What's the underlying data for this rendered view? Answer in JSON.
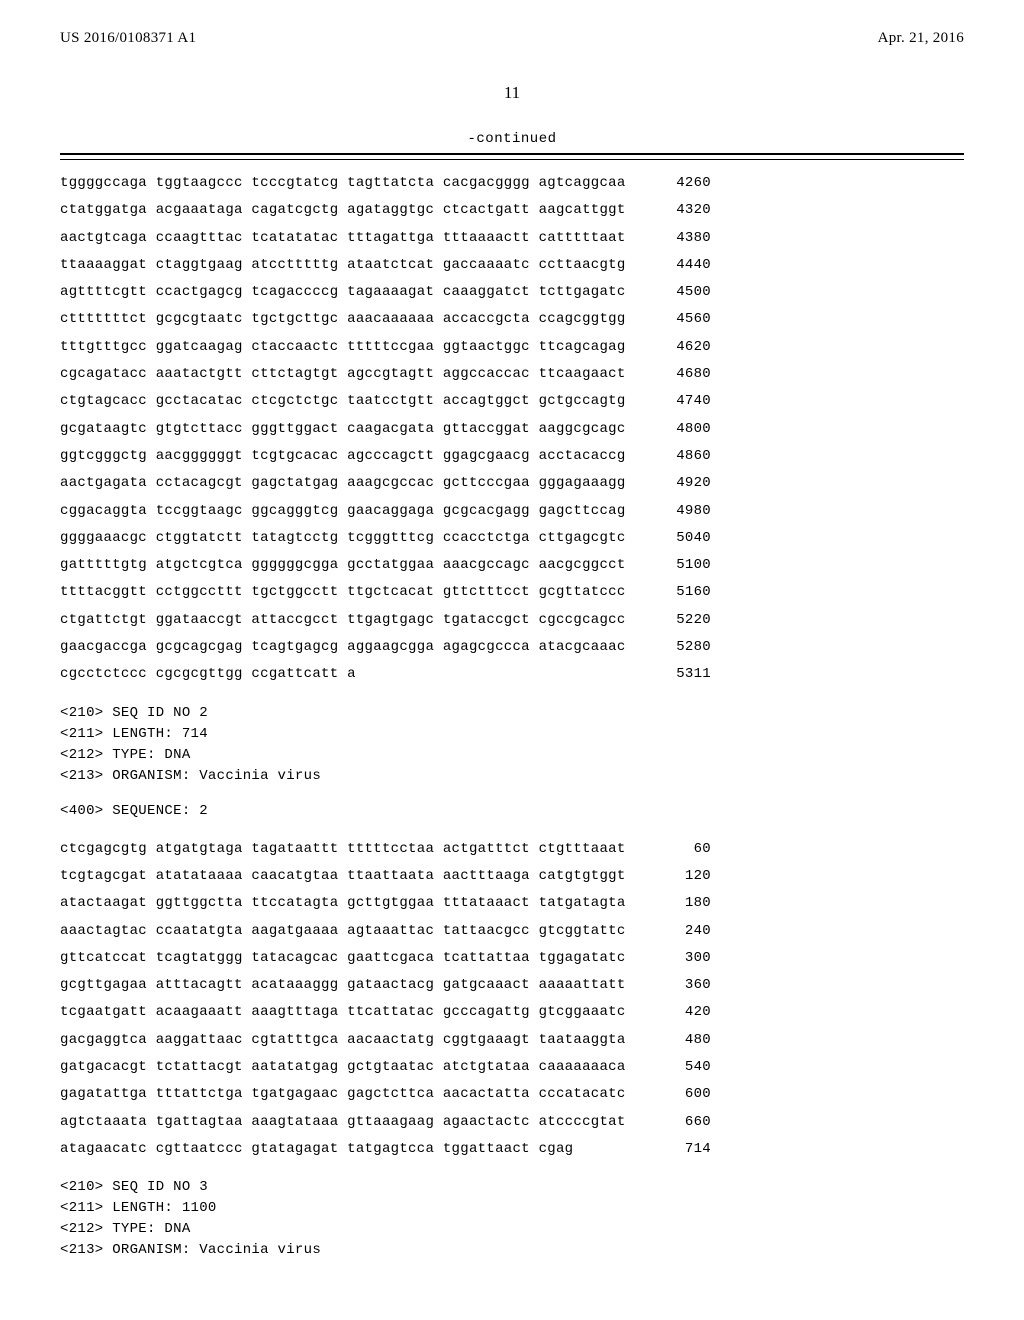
{
  "header": {
    "left": "US 2016/0108371 A1",
    "right": "Apr. 21, 2016"
  },
  "page_number": "11",
  "continued_label": "-continued",
  "seq1": {
    "lines": [
      {
        "seq": "tggggccaga tggtaagccc tcccgtatcg tagttatcta cacgacgggg agtcaggcaa",
        "pos": "4260"
      },
      {
        "seq": "ctatggatga acgaaataga cagatcgctg agataggtgc ctcactgatt aagcattggt",
        "pos": "4320"
      },
      {
        "seq": "aactgtcaga ccaagtttac tcatatatac tttagattga tttaaaactt catttttaat",
        "pos": "4380"
      },
      {
        "seq": "ttaaaaggat ctaggtgaag atcctttttg ataatctcat gaccaaaatc ccttaacgtg",
        "pos": "4440"
      },
      {
        "seq": "agttttcgtt ccactgagcg tcagaccccg tagaaaagat caaaggatct tcttgagatc",
        "pos": "4500"
      },
      {
        "seq": "ctttttttct gcgcgtaatc tgctgcttgc aaacaaaaaa accaccgcta ccagcggtgg",
        "pos": "4560"
      },
      {
        "seq": "tttgtttgcc ggatcaagag ctaccaactc tttttccgaa ggtaactggc ttcagcagag",
        "pos": "4620"
      },
      {
        "seq": "cgcagatacc aaatactgtt cttctagtgt agccgtagtt aggccaccac ttcaagaact",
        "pos": "4680"
      },
      {
        "seq": "ctgtagcacc gcctacatac ctcgctctgc taatcctgtt accagtggct gctgccagtg",
        "pos": "4740"
      },
      {
        "seq": "gcgataagtc gtgtcttacc gggttggact caagacgata gttaccggat aaggcgcagc",
        "pos": "4800"
      },
      {
        "seq": "ggtcgggctg aacggggggt tcgtgcacac agcccagctt ggagcgaacg acctacaccg",
        "pos": "4860"
      },
      {
        "seq": "aactgagata cctacagcgt gagctatgag aaagcgccac gcttcccgaa gggagaaagg",
        "pos": "4920"
      },
      {
        "seq": "cggacaggta tccggtaagc ggcagggtcg gaacaggaga gcgcacgagg gagcttccag",
        "pos": "4980"
      },
      {
        "seq": "ggggaaacgc ctggtatctt tatagtcctg tcgggtttcg ccacctctga cttgagcgtc",
        "pos": "5040"
      },
      {
        "seq": "gatttttgtg atgctcgtca ggggggcgga gcctatggaa aaacgccagc aacgcggcct",
        "pos": "5100"
      },
      {
        "seq": "ttttacggtt cctggccttt tgctggcctt ttgctcacat gttctttcct gcgttatccc",
        "pos": "5160"
      },
      {
        "seq": "ctgattctgt ggataaccgt attaccgcct ttgagtgagc tgataccgct cgccgcagcc",
        "pos": "5220"
      },
      {
        "seq": "gaacgaccga gcgcagcgag tcagtgagcg aggaagcgga agagcgccca atacgcaaac",
        "pos": "5280"
      },
      {
        "seq": "cgcctctccc cgcgcgttgg ccgattcatt a",
        "pos": "5311"
      }
    ]
  },
  "meta2": {
    "l1": "<210> SEQ ID NO 2",
    "l2": "<211> LENGTH: 714",
    "l3": "<212> TYPE: DNA",
    "l4": "<213> ORGANISM: Vaccinia virus"
  },
  "sequence_label": "<400> SEQUENCE: 2",
  "seq2": {
    "lines": [
      {
        "seq": "ctcgagcgtg atgatgtaga tagataattt tttttcctaa actgatttct ctgtttaaat",
        "pos": "60"
      },
      {
        "seq": "tcgtagcgat atatataaaa caacatgtaa ttaattaata aactttaaga catgtgtggt",
        "pos": "120"
      },
      {
        "seq": "atactaagat ggttggctta ttccatagta gcttgtggaa tttataaact tatgatagta",
        "pos": "180"
      },
      {
        "seq": "aaactagtac ccaatatgta aagatgaaaa agtaaattac tattaacgcc gtcggtattc",
        "pos": "240"
      },
      {
        "seq": "gttcatccat tcagtatggg tatacagcac gaattcgaca tcattattaa tggagatatc",
        "pos": "300"
      },
      {
        "seq": "gcgttgagaa atttacagtt acataaaggg gataactacg gatgcaaact aaaaattatt",
        "pos": "360"
      },
      {
        "seq": "tcgaatgatt acaagaaatt aaagtttaga ttcattatac gcccagattg gtcggaaatc",
        "pos": "420"
      },
      {
        "seq": "gacgaggtca aaggattaac cgtatttgca aacaactatg cggtgaaagt taataaggta",
        "pos": "480"
      },
      {
        "seq": "gatgacacgt tctattacgt aatatatgag gctgtaatac atctgtataa caaaaaaaca",
        "pos": "540"
      },
      {
        "seq": "gagatattga tttattctga tgatgagaac gagctcttca aacactatta cccatacatc",
        "pos": "600"
      },
      {
        "seq": "agtctaaata tgattagtaa aaagtataaa gttaaagaag agaactactc atccccgtat",
        "pos": "660"
      },
      {
        "seq": "atagaacatc cgttaatccc gtatagagat tatgagtcca tggattaact cgag",
        "pos": "714"
      }
    ]
  },
  "meta3": {
    "l1": "<210> SEQ ID NO 3",
    "l2": "<211> LENGTH: 1100",
    "l3": "<212> TYPE: DNA",
    "l4": "<213> ORGANISM: Vaccinia virus"
  }
}
